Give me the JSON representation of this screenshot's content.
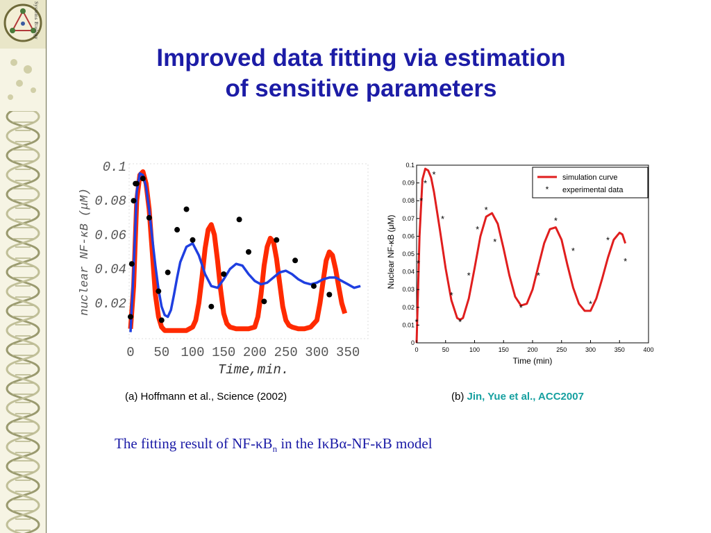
{
  "slide": {
    "title_line1": "Improved data fitting via estimation",
    "title_line2": "of sensitive parameters",
    "logo_text": "Systems Biology",
    "caption_a": "(a) Hoffmann et al., Science (2002)",
    "caption_b_prefix": "(b) ",
    "caption_b_cite": "Jin, Yue et al., ACC2007",
    "bottom_caption": {
      "part1": "The fitting result of NF-κB",
      "subscript": "n",
      "part2": " in the IκBα-NF-κB model"
    },
    "colors": {
      "title": "#1c1ca6",
      "cite": "#16a0a0",
      "caption": "#1a1aa6",
      "sidebar_bg": "#f6f4e4"
    }
  },
  "chart_data": [
    {
      "type": "line",
      "ylabel": "nuclear NF-κB (μM)",
      "xlabel": "Time,min.",
      "xlim": [
        0,
        380
      ],
      "ylim": [
        0,
        0.1
      ],
      "xticks": [
        "0",
        "50",
        "100",
        "150",
        "200",
        "250",
        "300",
        "350"
      ],
      "yticks": [
        "0.1",
        "0.08",
        "0.06",
        "0.04",
        "0.02"
      ],
      "series": [
        {
          "color": "#ff2a00",
          "kind": "line",
          "x": [
            0,
            5,
            10,
            15,
            20,
            25,
            30,
            35,
            40,
            45,
            50,
            55,
            60,
            65,
            70,
            80,
            90,
            100,
            105,
            110,
            115,
            120,
            125,
            130,
            135,
            140,
            145,
            150,
            155,
            160,
            170,
            180,
            190,
            200,
            205,
            210,
            215,
            220,
            225,
            230,
            235,
            240,
            245,
            250,
            255,
            260,
            270,
            280,
            290,
            300,
            305,
            310,
            315,
            320,
            325,
            330,
            335,
            340,
            345
          ],
          "values": [
            0.005,
            0.03,
            0.08,
            0.095,
            0.097,
            0.09,
            0.075,
            0.05,
            0.025,
            0.012,
            0.006,
            0.004,
            0.004,
            0.004,
            0.004,
            0.004,
            0.004,
            0.006,
            0.01,
            0.02,
            0.035,
            0.052,
            0.063,
            0.066,
            0.06,
            0.045,
            0.028,
            0.014,
            0.008,
            0.006,
            0.005,
            0.005,
            0.005,
            0.006,
            0.012,
            0.025,
            0.042,
            0.053,
            0.058,
            0.056,
            0.046,
            0.032,
            0.018,
            0.01,
            0.007,
            0.006,
            0.005,
            0.005,
            0.006,
            0.01,
            0.02,
            0.033,
            0.045,
            0.05,
            0.048,
            0.04,
            0.03,
            0.02,
            0.014
          ]
        },
        {
          "color": "#1f3fe0",
          "kind": "line",
          "x": [
            0,
            5,
            10,
            15,
            20,
            25,
            30,
            35,
            40,
            45,
            50,
            55,
            60,
            65,
            70,
            75,
            80,
            90,
            100,
            110,
            120,
            130,
            140,
            150,
            160,
            170,
            180,
            190,
            200,
            210,
            220,
            230,
            240,
            250,
            260,
            270,
            280,
            290,
            300,
            310,
            320,
            330,
            340,
            350,
            360,
            370
          ],
          "values": [
            0.003,
            0.04,
            0.085,
            0.096,
            0.095,
            0.088,
            0.075,
            0.058,
            0.042,
            0.028,
            0.018,
            0.013,
            0.012,
            0.016,
            0.025,
            0.035,
            0.044,
            0.053,
            0.055,
            0.048,
            0.037,
            0.03,
            0.029,
            0.034,
            0.04,
            0.043,
            0.042,
            0.037,
            0.033,
            0.031,
            0.032,
            0.035,
            0.038,
            0.039,
            0.037,
            0.034,
            0.032,
            0.031,
            0.032,
            0.034,
            0.035,
            0.035,
            0.033,
            0.031,
            0.029,
            0.03
          ]
        },
        {
          "color": "#000000",
          "kind": "points",
          "x": [
            0,
            2,
            5,
            8,
            10,
            20,
            30,
            45,
            50,
            60,
            75,
            90,
            100,
            130,
            150,
            175,
            190,
            215,
            235,
            265,
            295,
            320
          ],
          "values": [
            0.012,
            0.043,
            0.08,
            0.09,
            0.09,
            0.093,
            0.07,
            0.027,
            0.01,
            0.038,
            0.063,
            0.075,
            0.057,
            0.018,
            0.037,
            0.069,
            0.05,
            0.021,
            0.057,
            0.045,
            0.03,
            0.025
          ]
        }
      ]
    },
    {
      "type": "line",
      "ylabel": "Nuclear NF-κB (μM)",
      "xlabel": "Time (min)",
      "xlim": [
        0,
        400
      ],
      "ylim": [
        0,
        0.1
      ],
      "xticks": [
        "0",
        "50",
        "100",
        "150",
        "200",
        "250",
        "300",
        "350",
        "400"
      ],
      "yticks": [
        "0",
        "0.01",
        "0.02",
        "0.03",
        "0.04",
        "0.05",
        "0.06",
        "0.07",
        "0.08",
        "0.09",
        "0.1"
      ],
      "legend": "top-right",
      "series": [
        {
          "name": "simulation curve",
          "color": "#e01e1e",
          "kind": "line",
          "x": [
            0,
            5,
            10,
            15,
            20,
            25,
            30,
            40,
            50,
            60,
            70,
            75,
            80,
            90,
            100,
            110,
            120,
            130,
            140,
            150,
            160,
            170,
            180,
            190,
            200,
            210,
            220,
            230,
            240,
            250,
            260,
            270,
            280,
            290,
            300,
            310,
            320,
            330,
            340,
            350,
            355,
            360
          ],
          "values": [
            0.0,
            0.06,
            0.092,
            0.098,
            0.097,
            0.093,
            0.085,
            0.064,
            0.042,
            0.024,
            0.014,
            0.013,
            0.014,
            0.025,
            0.042,
            0.06,
            0.071,
            0.073,
            0.067,
            0.053,
            0.038,
            0.026,
            0.021,
            0.022,
            0.03,
            0.043,
            0.056,
            0.064,
            0.065,
            0.058,
            0.044,
            0.031,
            0.022,
            0.018,
            0.018,
            0.025,
            0.036,
            0.048,
            0.058,
            0.062,
            0.061,
            0.056
          ]
        },
        {
          "name": "experimental data",
          "color": "#000000",
          "kind": "points",
          "x": [
            0,
            3,
            8,
            15,
            30,
            45,
            60,
            75,
            90,
            105,
            120,
            135,
            180,
            210,
            240,
            270,
            300,
            330,
            360
          ],
          "values": [
            0.012,
            0.045,
            0.08,
            0.09,
            0.095,
            0.07,
            0.027,
            0.012,
            0.038,
            0.064,
            0.075,
            0.057,
            0.02,
            0.038,
            0.069,
            0.052,
            0.022,
            0.058,
            0.046
          ]
        }
      ]
    }
  ]
}
